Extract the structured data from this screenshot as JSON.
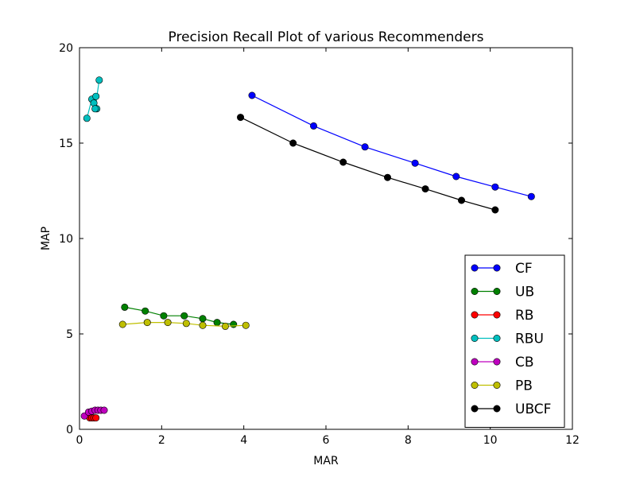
{
  "chart_data": {
    "type": "line",
    "title": "Precision Recall Plot of various Recommenders",
    "xlabel": "MAR",
    "ylabel": "MAP",
    "xlim": [
      0,
      12
    ],
    "ylim": [
      0,
      20
    ],
    "xticks": [
      0,
      2,
      4,
      6,
      8,
      10,
      12
    ],
    "yticks": [
      0,
      5,
      10,
      15,
      20
    ],
    "grid": false,
    "legend_position": "lower-right",
    "series": [
      {
        "name": "CF",
        "color": "#0000ff",
        "points": [
          [
            4.2,
            17.5
          ],
          [
            5.7,
            15.9
          ],
          [
            6.95,
            14.8
          ],
          [
            8.17,
            13.95
          ],
          [
            9.17,
            13.25
          ],
          [
            10.12,
            12.7
          ],
          [
            11.0,
            12.2
          ]
        ]
      },
      {
        "name": "UB",
        "color": "#008000",
        "points": [
          [
            1.1,
            6.4
          ],
          [
            1.6,
            6.2
          ],
          [
            2.05,
            5.95
          ],
          [
            2.55,
            5.95
          ],
          [
            3.0,
            5.8
          ],
          [
            3.35,
            5.6
          ],
          [
            3.75,
            5.5
          ]
        ]
      },
      {
        "name": "RB",
        "color": "#ff0000",
        "points": [
          [
            0.25,
            0.6
          ],
          [
            0.3,
            0.6
          ],
          [
            0.35,
            0.6
          ],
          [
            0.4,
            0.6
          ]
        ]
      },
      {
        "name": "RBU",
        "color": "#00bfbf",
        "points": [
          [
            0.18,
            16.3
          ],
          [
            0.3,
            17.3
          ],
          [
            0.35,
            17.1
          ],
          [
            0.4,
            17.45
          ],
          [
            0.42,
            16.8
          ],
          [
            0.38,
            16.8
          ],
          [
            0.48,
            18.3
          ]
        ]
      },
      {
        "name": "CB",
        "color": "#bf00bf",
        "points": [
          [
            0.12,
            0.7
          ],
          [
            0.22,
            0.9
          ],
          [
            0.3,
            0.95
          ],
          [
            0.38,
            1.0
          ],
          [
            0.45,
            1.0
          ],
          [
            0.52,
            1.0
          ],
          [
            0.6,
            1.0
          ]
        ]
      },
      {
        "name": "PB",
        "color": "#bfbf00",
        "points": [
          [
            1.05,
            5.5
          ],
          [
            1.65,
            5.6
          ],
          [
            2.15,
            5.6
          ],
          [
            2.6,
            5.55
          ],
          [
            3.0,
            5.45
          ],
          [
            3.55,
            5.4
          ],
          [
            4.05,
            5.45
          ]
        ]
      },
      {
        "name": "UBCF",
        "color": "#000000",
        "points": [
          [
            3.92,
            16.35
          ],
          [
            5.2,
            15.0
          ],
          [
            6.42,
            14.0
          ],
          [
            7.5,
            13.2
          ],
          [
            8.42,
            12.6
          ],
          [
            9.3,
            12.0
          ],
          [
            10.12,
            11.5
          ]
        ]
      }
    ]
  }
}
